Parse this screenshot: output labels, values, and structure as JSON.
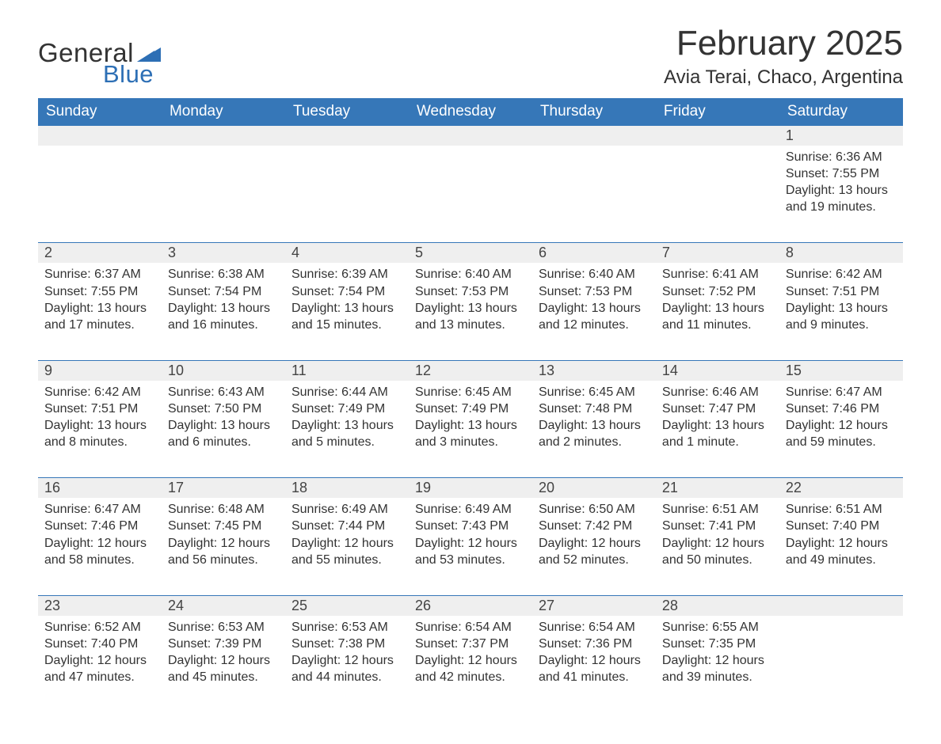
{
  "logo": {
    "word1": "General",
    "word2": "Blue",
    "triangle_color": "#2d6fb5"
  },
  "title": "February 2025",
  "location": "Avia Terai, Chaco, Argentina",
  "colors": {
    "header_bg": "#3677b8",
    "header_text": "#ffffff",
    "daynum_bg": "#efefef",
    "border": "#3677b8",
    "text": "#333333",
    "logo_blue": "#2d6fb5"
  },
  "weekdays": [
    "Sunday",
    "Monday",
    "Tuesday",
    "Wednesday",
    "Thursday",
    "Friday",
    "Saturday"
  ],
  "weeks": [
    [
      null,
      null,
      null,
      null,
      null,
      null,
      {
        "n": "1",
        "sunrise": "6:36 AM",
        "sunset": "7:55 PM",
        "daylight": "13 hours and 19 minutes."
      }
    ],
    [
      {
        "n": "2",
        "sunrise": "6:37 AM",
        "sunset": "7:55 PM",
        "daylight": "13 hours and 17 minutes."
      },
      {
        "n": "3",
        "sunrise": "6:38 AM",
        "sunset": "7:54 PM",
        "daylight": "13 hours and 16 minutes."
      },
      {
        "n": "4",
        "sunrise": "6:39 AM",
        "sunset": "7:54 PM",
        "daylight": "13 hours and 15 minutes."
      },
      {
        "n": "5",
        "sunrise": "6:40 AM",
        "sunset": "7:53 PM",
        "daylight": "13 hours and 13 minutes."
      },
      {
        "n": "6",
        "sunrise": "6:40 AM",
        "sunset": "7:53 PM",
        "daylight": "13 hours and 12 minutes."
      },
      {
        "n": "7",
        "sunrise": "6:41 AM",
        "sunset": "7:52 PM",
        "daylight": "13 hours and 11 minutes."
      },
      {
        "n": "8",
        "sunrise": "6:42 AM",
        "sunset": "7:51 PM",
        "daylight": "13 hours and 9 minutes."
      }
    ],
    [
      {
        "n": "9",
        "sunrise": "6:42 AM",
        "sunset": "7:51 PM",
        "daylight": "13 hours and 8 minutes."
      },
      {
        "n": "10",
        "sunrise": "6:43 AM",
        "sunset": "7:50 PM",
        "daylight": "13 hours and 6 minutes."
      },
      {
        "n": "11",
        "sunrise": "6:44 AM",
        "sunset": "7:49 PM",
        "daylight": "13 hours and 5 minutes."
      },
      {
        "n": "12",
        "sunrise": "6:45 AM",
        "sunset": "7:49 PM",
        "daylight": "13 hours and 3 minutes."
      },
      {
        "n": "13",
        "sunrise": "6:45 AM",
        "sunset": "7:48 PM",
        "daylight": "13 hours and 2 minutes."
      },
      {
        "n": "14",
        "sunrise": "6:46 AM",
        "sunset": "7:47 PM",
        "daylight": "13 hours and 1 minute."
      },
      {
        "n": "15",
        "sunrise": "6:47 AM",
        "sunset": "7:46 PM",
        "daylight": "12 hours and 59 minutes."
      }
    ],
    [
      {
        "n": "16",
        "sunrise": "6:47 AM",
        "sunset": "7:46 PM",
        "daylight": "12 hours and 58 minutes."
      },
      {
        "n": "17",
        "sunrise": "6:48 AM",
        "sunset": "7:45 PM",
        "daylight": "12 hours and 56 minutes."
      },
      {
        "n": "18",
        "sunrise": "6:49 AM",
        "sunset": "7:44 PM",
        "daylight": "12 hours and 55 minutes."
      },
      {
        "n": "19",
        "sunrise": "6:49 AM",
        "sunset": "7:43 PM",
        "daylight": "12 hours and 53 minutes."
      },
      {
        "n": "20",
        "sunrise": "6:50 AM",
        "sunset": "7:42 PM",
        "daylight": "12 hours and 52 minutes."
      },
      {
        "n": "21",
        "sunrise": "6:51 AM",
        "sunset": "7:41 PM",
        "daylight": "12 hours and 50 minutes."
      },
      {
        "n": "22",
        "sunrise": "6:51 AM",
        "sunset": "7:40 PM",
        "daylight": "12 hours and 49 minutes."
      }
    ],
    [
      {
        "n": "23",
        "sunrise": "6:52 AM",
        "sunset": "7:40 PM",
        "daylight": "12 hours and 47 minutes."
      },
      {
        "n": "24",
        "sunrise": "6:53 AM",
        "sunset": "7:39 PM",
        "daylight": "12 hours and 45 minutes."
      },
      {
        "n": "25",
        "sunrise": "6:53 AM",
        "sunset": "7:38 PM",
        "daylight": "12 hours and 44 minutes."
      },
      {
        "n": "26",
        "sunrise": "6:54 AM",
        "sunset": "7:37 PM",
        "daylight": "12 hours and 42 minutes."
      },
      {
        "n": "27",
        "sunrise": "6:54 AM",
        "sunset": "7:36 PM",
        "daylight": "12 hours and 41 minutes."
      },
      {
        "n": "28",
        "sunrise": "6:55 AM",
        "sunset": "7:35 PM",
        "daylight": "12 hours and 39 minutes."
      },
      null
    ]
  ],
  "labels": {
    "sunrise": "Sunrise: ",
    "sunset": "Sunset: ",
    "daylight": "Daylight: "
  }
}
